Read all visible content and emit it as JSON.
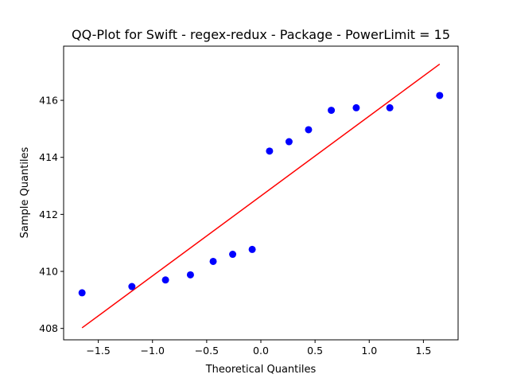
{
  "chart_data": {
    "type": "scatter",
    "title": "QQ-Plot for Swift - regex-redux - Package - PowerLimit = 15",
    "xlabel": "Theoretical Quantiles",
    "ylabel": "Sample Quantiles",
    "xlim": [
      -1.82,
      1.82
    ],
    "ylim": [
      407.6,
      417.9
    ],
    "x_ticks": [
      -1.5,
      -1.0,
      -0.5,
      0.0,
      0.5,
      1.0,
      1.5
    ],
    "x_tick_labels": [
      "−1.5",
      "−1.0",
      "−0.5",
      "0.0",
      "0.5",
      "1.0",
      "1.5"
    ],
    "y_ticks": [
      408,
      410,
      412,
      414,
      416
    ],
    "y_tick_labels": [
      "408",
      "410",
      "412",
      "414",
      "416"
    ],
    "grid": false,
    "series": [
      {
        "kind": "points",
        "color": "#0000ff",
        "x": [
          -1.65,
          -1.19,
          -0.88,
          -0.65,
          -0.44,
          -0.26,
          -0.08,
          0.08,
          0.26,
          0.44,
          0.65,
          0.88,
          1.19,
          1.65
        ],
        "y": [
          409.25,
          409.47,
          409.7,
          409.88,
          410.35,
          410.6,
          410.77,
          414.22,
          414.55,
          414.97,
          415.65,
          415.74,
          415.74,
          416.17
        ]
      },
      {
        "kind": "line",
        "color": "#ff0000",
        "x": [
          -1.65,
          1.65
        ],
        "y": [
          408.02,
          417.27
        ]
      }
    ]
  }
}
